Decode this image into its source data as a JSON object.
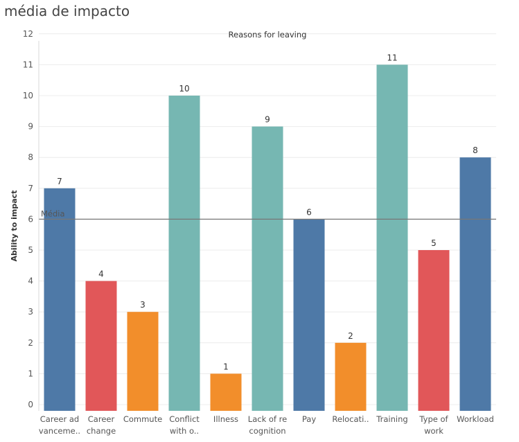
{
  "page": {
    "title": "média de impacto"
  },
  "chart_data": {
    "type": "bar",
    "title": "Reasons for leaving",
    "ylabel": "Ability to impact",
    "xlabel": "",
    "ylim": [
      0,
      12
    ],
    "yticks": [
      0,
      1,
      2,
      3,
      4,
      5,
      6,
      7,
      8,
      9,
      10,
      11,
      12
    ],
    "grid": true,
    "categories": [
      [
        "Career ad",
        "vanceme.."
      ],
      [
        "Career",
        "change"
      ],
      [
        "Commute"
      ],
      [
        "Conflict",
        "with o.."
      ],
      [
        "Illness"
      ],
      [
        "Lack of re",
        "cognition"
      ],
      [
        "Pay"
      ],
      [
        "Relocati.."
      ],
      [
        "Training"
      ],
      [
        "Type of",
        "work"
      ],
      [
        "Workload"
      ]
    ],
    "values": [
      7,
      4,
      3,
      10,
      1,
      9,
      6,
      2,
      11,
      5,
      8
    ],
    "colors": [
      "#4e79a7",
      "#e15759",
      "#f28e2b",
      "#76b7b2",
      "#f28e2b",
      "#76b7b2",
      "#4e79a7",
      "#f28e2b",
      "#76b7b2",
      "#e15759",
      "#4e79a7"
    ],
    "reference_line": {
      "label": "Média",
      "value": 6,
      "color": "#777777"
    }
  }
}
